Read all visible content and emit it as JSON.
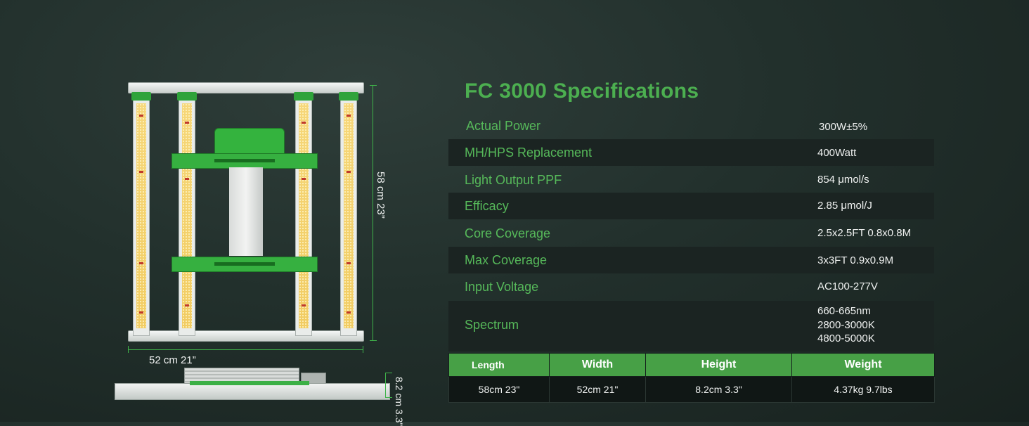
{
  "title": "FC 3000 Specifications",
  "dimension_labels": {
    "width": "52 cm  21”",
    "length": "58 cm  23”",
    "height": "8.2 cm  3.3”"
  },
  "specs": [
    {
      "label": "Actual Power",
      "value": "300W±5%"
    },
    {
      "label": "MH/HPS Replacement",
      "value": "400Watt"
    },
    {
      "label": "Light Output PPF",
      "value": "854 μmol/s"
    },
    {
      "label": "Efficacy",
      "value": "2.85  μmol/J"
    },
    {
      "label": "Core Coverage",
      "value": "2.5x2.5FT 0.8x0.8M"
    },
    {
      "label": "Max Coverage",
      "value": "3x3FT 0.9x0.9M"
    },
    {
      "label": "Input Voltage",
      "value": "AC100-277V"
    },
    {
      "label": "Spectrum",
      "values": [
        "660-665nm",
        "2800-3000K",
        "4800-5000K"
      ]
    }
  ],
  "dimensions_table": {
    "headers": [
      "Length",
      "Width",
      "Height",
      "Weight"
    ],
    "values": [
      "58cm   23\"",
      "52cm  21\"",
      "8.2cm   3.3\"",
      "4.37kg  9.7lbs"
    ]
  },
  "colors": {
    "accent_green": "#4caf50",
    "header_green": "#47a046",
    "background": "#22302c"
  }
}
